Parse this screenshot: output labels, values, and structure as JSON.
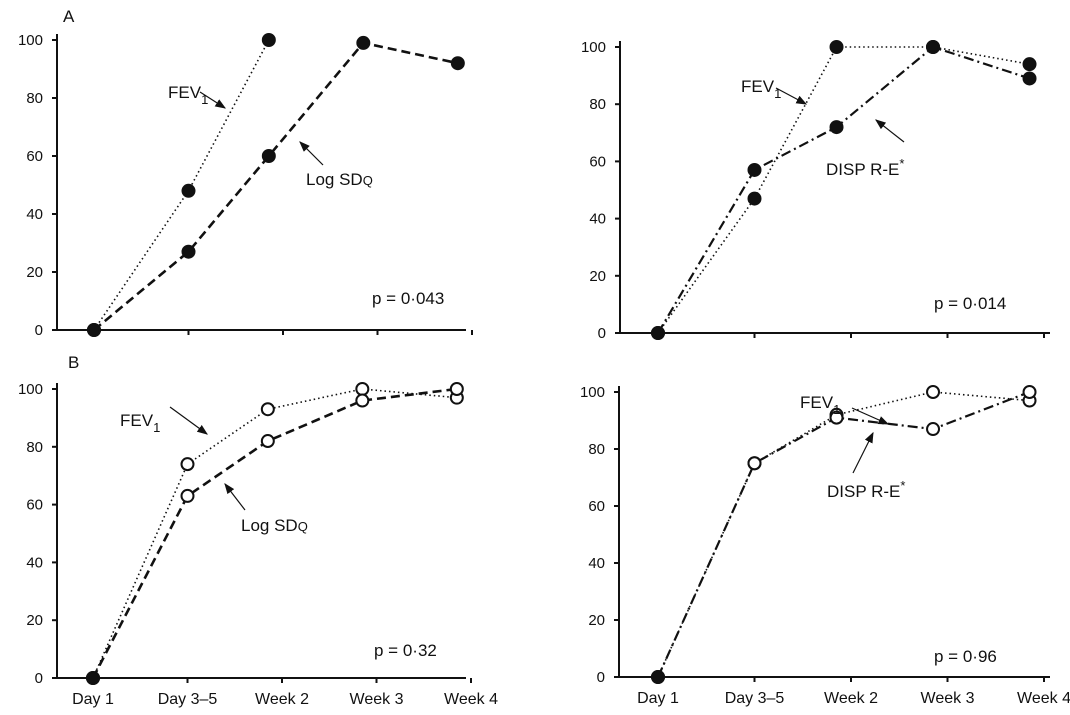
{
  "figure": {
    "x_categories": [
      "Day 1",
      "Day 3–5",
      "Week 2",
      "Week 3",
      "Week 4"
    ],
    "y_ticks": [
      "0",
      "20",
      "40",
      "60",
      "80",
      "100"
    ]
  },
  "chart_data": [
    {
      "type": "line",
      "panel": "A",
      "ylim": [
        0,
        100
      ],
      "series": [
        {
          "name": "FEV1",
          "style": "dotted",
          "marker": "filled",
          "x": [
            0,
            1,
            1.85
          ],
          "y": [
            0,
            48,
            100
          ]
        },
        {
          "name": "Log SDQ",
          "style": "dashed",
          "marker": "filled",
          "x": [
            0,
            1,
            1.85,
            2.85,
            3.85
          ],
          "y": [
            0,
            27,
            60,
            99,
            92
          ]
        }
      ],
      "annotations": [
        "FEV1",
        "Log SDQ",
        "p = 0·043"
      ]
    },
    {
      "type": "line",
      "panel": "",
      "ylim": [
        0,
        100
      ],
      "series": [
        {
          "name": "FEV1",
          "style": "dotted",
          "marker": "filled",
          "x": [
            0,
            1,
            1.85,
            2.85,
            3.85
          ],
          "y": [
            0,
            47,
            100,
            100,
            94
          ]
        },
        {
          "name": "DISP R-E*",
          "style": "dashdot",
          "marker": "filled",
          "x": [
            0,
            1,
            1.85,
            2.85,
            3.85
          ],
          "y": [
            0,
            57,
            72,
            100,
            89
          ]
        }
      ],
      "annotations": [
        "FEV1",
        "DISP R-E*",
        "p = 0·014"
      ]
    },
    {
      "type": "line",
      "panel": "B",
      "ylim": [
        0,
        100
      ],
      "series": [
        {
          "name": "FEV1",
          "style": "dotted",
          "marker": "open",
          "x": [
            0,
            1,
            1.85,
            2.85,
            3.85
          ],
          "y": [
            0,
            74,
            93,
            100,
            97
          ]
        },
        {
          "name": "Log SDQ",
          "style": "dashed",
          "marker": "open",
          "x": [
            0,
            1,
            1.85,
            2.85,
            3.85
          ],
          "y": [
            0,
            63,
            82,
            96,
            100
          ]
        }
      ],
      "annotations": [
        "FEV1",
        "Log SDQ",
        "p = 0·32"
      ]
    },
    {
      "type": "line",
      "panel": "",
      "ylim": [
        0,
        100
      ],
      "series": [
        {
          "name": "FEV1",
          "style": "dotted",
          "marker": "open",
          "x": [
            0,
            1,
            1.85,
            2.85,
            3.85
          ],
          "y": [
            0,
            75,
            92,
            100,
            97
          ]
        },
        {
          "name": "DISP R-E*",
          "style": "dashdot",
          "marker": "open",
          "x": [
            0,
            1,
            1.85,
            2.85,
            3.85
          ],
          "y": [
            0,
            75,
            91,
            87,
            100
          ]
        }
      ],
      "annotations": [
        "FEV1",
        "DISP R-E*",
        "p = 0·96"
      ]
    }
  ],
  "text": {
    "panel_a": "A",
    "panel_b": "B",
    "fev_main": "FEV",
    "fev_sub": "1",
    "log_sd": "Log SD",
    "log_sd_sub": "Q",
    "disp": "DISP R-E",
    "disp_sup": "*",
    "p_a_left": "p = 0·043",
    "p_a_right": "p = 0·014",
    "p_b_left": "p = 0·32",
    "p_b_right": "p = 0·96"
  }
}
